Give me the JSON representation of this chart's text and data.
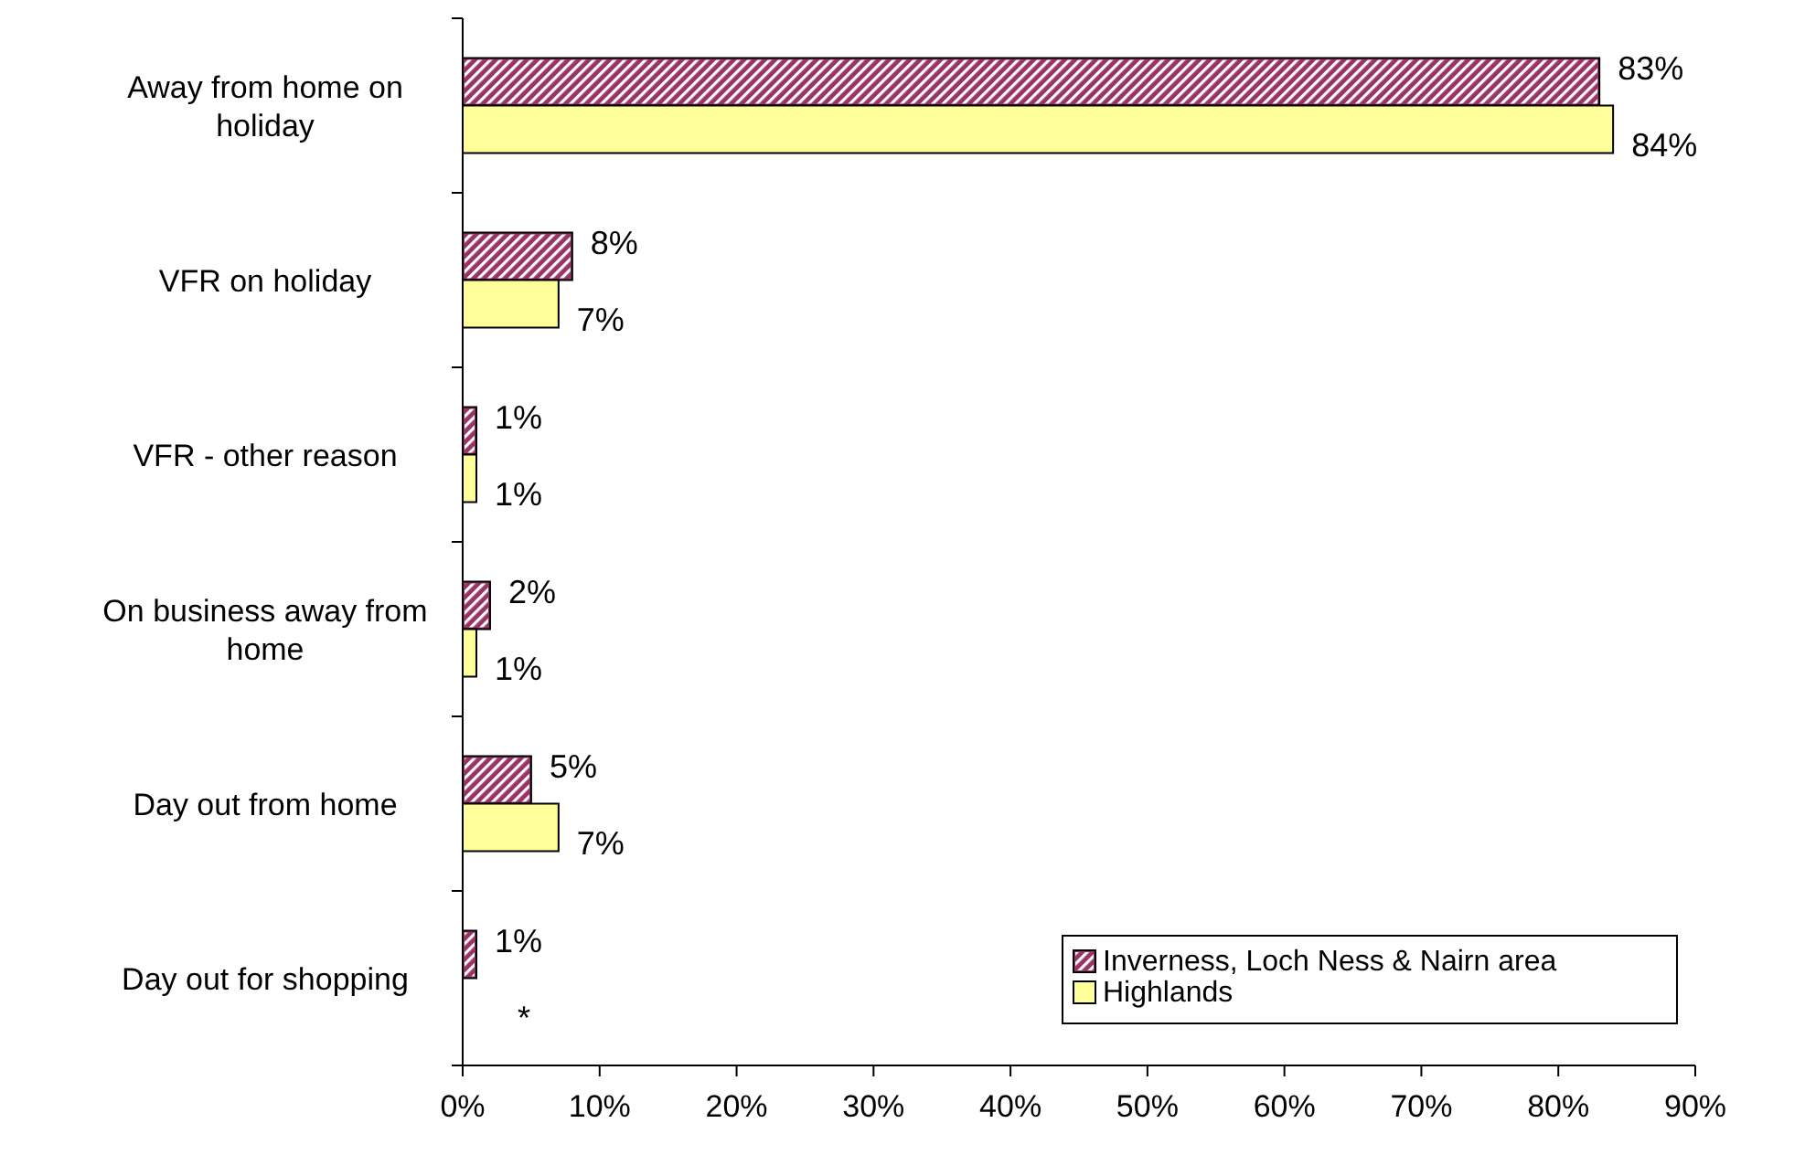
{
  "chart_data": {
    "type": "bar",
    "orientation": "horizontal",
    "categories": [
      "Away from home on holiday",
      "VFR on holiday",
      "VFR - other reason",
      "On business away from home",
      "Day out from home",
      "Day out for shopping"
    ],
    "series": [
      {
        "name": "Inverness, Loch Ness & Nairn area",
        "color": "#993366",
        "values": [
          83,
          8,
          1,
          2,
          5,
          1
        ],
        "value_labels": [
          "83%",
          "8%",
          "1%",
          "2%",
          "5%",
          "1%"
        ]
      },
      {
        "name": "Highlands",
        "color": "#ffff99",
        "values": [
          84,
          7,
          1,
          1,
          7,
          null
        ],
        "value_labels": [
          "84%",
          "7%",
          "1%",
          "1%",
          "7%",
          "*"
        ]
      }
    ],
    "xlim": [
      0,
      90
    ],
    "xticks": [
      {
        "value": 0,
        "label": "0%"
      },
      {
        "value": 10,
        "label": "10%"
      },
      {
        "value": 20,
        "label": "20%"
      },
      {
        "value": 30,
        "label": "30%"
      },
      {
        "value": 40,
        "label": "40%"
      },
      {
        "value": 50,
        "label": "50%"
      },
      {
        "value": 60,
        "label": "60%"
      },
      {
        "value": 70,
        "label": "70%"
      },
      {
        "value": 80,
        "label": "80%"
      },
      {
        "value": 90,
        "label": "90%"
      }
    ],
    "legend": "bottom right",
    "grid": false
  }
}
